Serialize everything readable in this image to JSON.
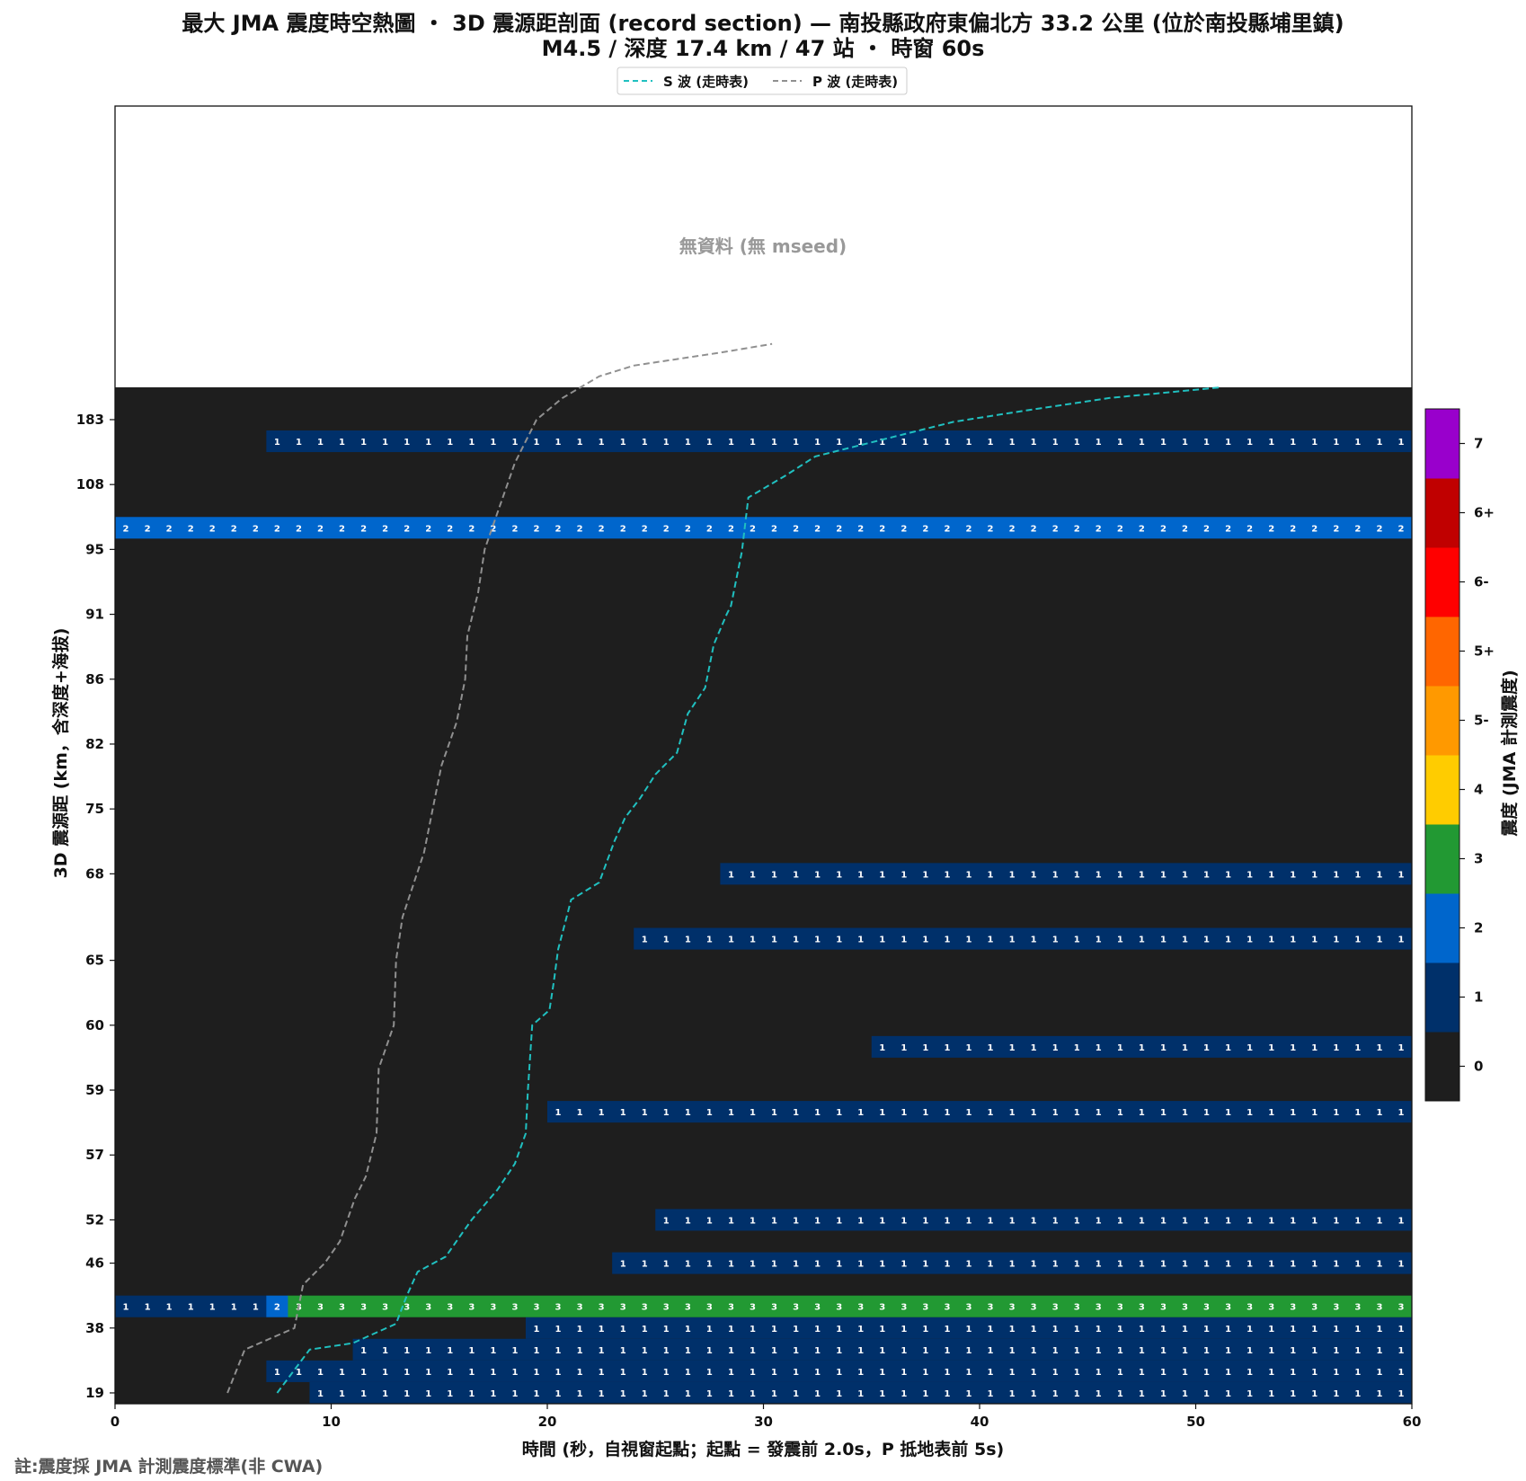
{
  "chart_data": {
    "type": "heatmap",
    "title": "最大 JMA 震度時空熱圖 ・ 3D 震源距剖面 (record section) — 南投縣政府東偏北方  33.2  公里 (位於南投縣埔里鎮)",
    "subtitle": "M4.5 / 深度 17.4 km / 47 站 ・ 時窗 60s",
    "xlabel": "時間 (秒，自視窗起點；起點 = 發震前 2.0s，P 抵地表前 5s)",
    "ylabel": "3D 震源距 (km，含深度+海拔)",
    "xlim": [
      0,
      60
    ],
    "x_ticks": [
      0,
      10,
      20,
      30,
      40,
      50,
      60
    ],
    "cell_seconds": 1,
    "no_data_text": "無資料 (無 mseed)",
    "legend": [
      {
        "label": "S 波 (走時表)",
        "color": "#20c0c0"
      },
      {
        "label": "P 波 (走時表)",
        "color": "#909090"
      }
    ],
    "colorbar": {
      "label": "震度 (JMA 計測震度)",
      "levels": [
        "0",
        "1",
        "2",
        "3",
        "4",
        "5-",
        "5+",
        "6-",
        "6+",
        "7"
      ],
      "colors": [
        "#1e1e1e",
        "#00306a",
        "#0066cc",
        "#229933",
        "#ffcc00",
        "#ff9900",
        "#ff6600",
        "#ff0000",
        "#c00000",
        "#9900cc"
      ]
    },
    "y_ticks": [
      {
        "label": "19",
        "row": 0
      },
      {
        "label": "38",
        "row": 3
      },
      {
        "label": "46",
        "row": 6
      },
      {
        "label": "52",
        "row": 8
      },
      {
        "label": "57",
        "row": 11
      },
      {
        "label": "59",
        "row": 14
      },
      {
        "label": "60",
        "row": 17
      },
      {
        "label": "65",
        "row": 20
      },
      {
        "label": "68",
        "row": 24
      },
      {
        "label": "75",
        "row": 27
      },
      {
        "label": "82",
        "row": 30
      },
      {
        "label": "86",
        "row": 33
      },
      {
        "label": "91",
        "row": 36
      },
      {
        "label": "95",
        "row": 39
      },
      {
        "label": "108",
        "row": 42
      },
      {
        "label": "183",
        "row": 45
      }
    ],
    "rows_total": 47,
    "empty_rows_above": 13,
    "rows": [
      {
        "row": 0,
        "segments": [
          [
            9,
            60,
            1
          ]
        ]
      },
      {
        "row": 1,
        "segments": [
          [
            7,
            60,
            1
          ]
        ]
      },
      {
        "row": 2,
        "segments": [
          [
            11,
            60,
            1
          ]
        ]
      },
      {
        "row": 3,
        "segments": [
          [
            19,
            60,
            1
          ]
        ]
      },
      {
        "row": 4,
        "segments": [
          [
            0,
            7,
            1
          ],
          [
            7,
            8,
            2
          ],
          [
            8,
            60,
            3
          ]
        ]
      },
      {
        "row": 6,
        "segments": [
          [
            23,
            60,
            1
          ]
        ]
      },
      {
        "row": 8,
        "segments": [
          [
            25,
            60,
            1
          ]
        ]
      },
      {
        "row": 13,
        "segments": [
          [
            20,
            60,
            1
          ]
        ]
      },
      {
        "row": 16,
        "segments": [
          [
            35,
            60,
            1
          ]
        ]
      },
      {
        "row": 21,
        "segments": [
          [
            24,
            60,
            1
          ]
        ]
      },
      {
        "row": 24,
        "segments": [
          [
            28,
            60,
            1
          ]
        ]
      },
      {
        "row": 40,
        "segments": [
          [
            0,
            60,
            2
          ]
        ]
      },
      {
        "row": 44,
        "segments": [
          [
            7,
            60,
            1
          ]
        ]
      }
    ],
    "p_wave": [
      [
        5.2,
        0
      ],
      [
        6.0,
        2
      ],
      [
        8.3,
        3
      ],
      [
        8.7,
        5
      ],
      [
        9.7,
        6
      ],
      [
        10.4,
        7
      ],
      [
        11.1,
        9
      ],
      [
        11.6,
        10
      ],
      [
        12.1,
        12
      ],
      [
        12.2,
        15
      ],
      [
        12.9,
        17
      ],
      [
        13.0,
        20
      ],
      [
        13.3,
        22
      ],
      [
        14.3,
        25
      ],
      [
        14.7,
        27
      ],
      [
        15.1,
        29
      ],
      [
        15.8,
        31
      ],
      [
        16.2,
        33
      ],
      [
        16.3,
        35
      ],
      [
        16.8,
        37
      ],
      [
        17.1,
        39
      ],
      [
        17.8,
        41
      ],
      [
        18.5,
        43
      ],
      [
        19.5,
        45
      ],
      [
        20.7,
        46
      ],
      [
        22.4,
        47
      ],
      [
        24.0,
        47.5
      ],
      [
        26.0,
        47.8
      ],
      [
        28.0,
        48.1
      ],
      [
        30.4,
        48.5
      ]
    ],
    "s_wave": [
      [
        7.5,
        0
      ],
      [
        9,
        2
      ],
      [
        11,
        2.3
      ],
      [
        13,
        3.2
      ],
      [
        13.5,
        4.5
      ],
      [
        14,
        5.6
      ],
      [
        15.3,
        6.3
      ],
      [
        16,
        7.3
      ],
      [
        16.5,
        8
      ],
      [
        17.7,
        9.4
      ],
      [
        18.5,
        10.6
      ],
      [
        19.0,
        12
      ],
      [
        19.1,
        14
      ],
      [
        19.3,
        17
      ],
      [
        20.1,
        17.7
      ],
      [
        20.3,
        19
      ],
      [
        20.5,
        20.5
      ],
      [
        21.1,
        22.8
      ],
      [
        22.4,
        23.6
      ],
      [
        23.1,
        25.5
      ],
      [
        23.6,
        26.6
      ],
      [
        24.3,
        27.5
      ],
      [
        25.0,
        28.6
      ],
      [
        26.0,
        29.6
      ],
      [
        26.5,
        31.4
      ],
      [
        27.3,
        32.6
      ],
      [
        27.7,
        34.6
      ],
      [
        28.3,
        36
      ],
      [
        28.5,
        36.4
      ],
      [
        29,
        38.9
      ],
      [
        29.3,
        41.4
      ],
      [
        31,
        42.4
      ],
      [
        32.4,
        43.3
      ],
      [
        36,
        44.2
      ],
      [
        38.8,
        44.9
      ],
      [
        42,
        45.4
      ],
      [
        46,
        46
      ],
      [
        51.2,
        46.5
      ]
    ]
  },
  "footnote": "註:震度採 JMA 計測震度標準(非 CWA)"
}
